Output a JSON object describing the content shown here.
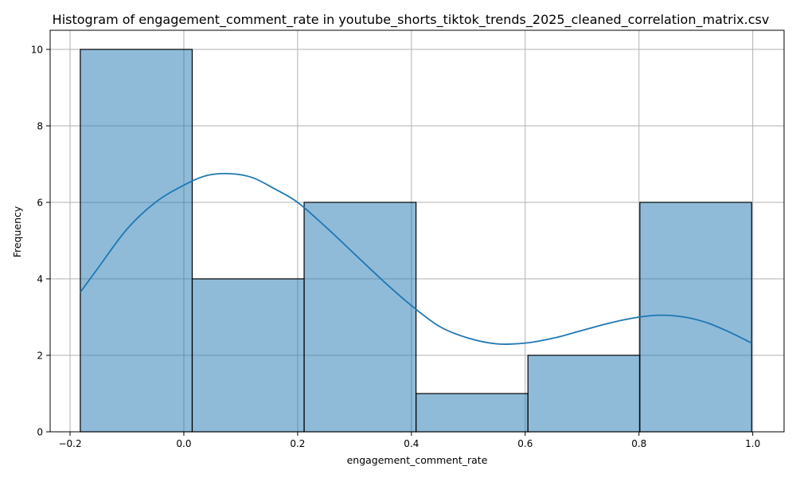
{
  "chart_data": {
    "type": "bar",
    "subtype": "histogram_with_kde",
    "title": "Histogram of engagement_comment_rate in youtube_shorts_tiktok_trends_2025_cleaned_correlation_matrix.csv",
    "xlabel": "engagement_comment_rate",
    "ylabel": "Frequency",
    "xlim": [
      -0.235,
      1.055
    ],
    "ylim": [
      0,
      10.5
    ],
    "xticks": [
      -0.2,
      0.0,
      0.2,
      0.4,
      0.6,
      0.8,
      1.0
    ],
    "xtick_labels": [
      "−0.2",
      "0.0",
      "0.2",
      "0.4",
      "0.6",
      "0.8",
      "1.0"
    ],
    "yticks": [
      0,
      2,
      4,
      6,
      8,
      10
    ],
    "ytick_labels": [
      "0",
      "2",
      "4",
      "6",
      "8",
      "10"
    ],
    "grid": true,
    "bins": [
      {
        "x0": -0.182,
        "x1": 0.0147,
        "count": 10
      },
      {
        "x0": 0.0147,
        "x1": 0.2114,
        "count": 4
      },
      {
        "x0": 0.2114,
        "x1": 0.4081,
        "count": 6
      },
      {
        "x0": 0.4081,
        "x1": 0.6048,
        "count": 1
      },
      {
        "x0": 0.6048,
        "x1": 0.8015,
        "count": 2
      },
      {
        "x0": 0.8015,
        "x1": 0.998,
        "count": 6
      }
    ],
    "kde": {
      "x": [
        -0.182,
        -0.15,
        -0.1,
        -0.05,
        0.0,
        0.04,
        0.08,
        0.12,
        0.16,
        0.2,
        0.25,
        0.3,
        0.35,
        0.4,
        0.45,
        0.5,
        0.55,
        0.6,
        0.65,
        0.7,
        0.75,
        0.8,
        0.84,
        0.88,
        0.92,
        0.96,
        0.998
      ],
      "y": [
        3.65,
        4.3,
        5.3,
        6.0,
        6.45,
        6.7,
        6.75,
        6.65,
        6.35,
        6.0,
        5.35,
        4.65,
        3.95,
        3.3,
        2.75,
        2.45,
        2.3,
        2.32,
        2.45,
        2.65,
        2.85,
        3.0,
        3.05,
        3.0,
        2.85,
        2.6,
        2.32
      ]
    },
    "colors": {
      "bar_fill": "#1f77b4",
      "bar_fill_opacity": 0.5,
      "bar_edge": "#000000",
      "kde_line": "#1f77b4",
      "grid": "#b0b0b0"
    }
  }
}
